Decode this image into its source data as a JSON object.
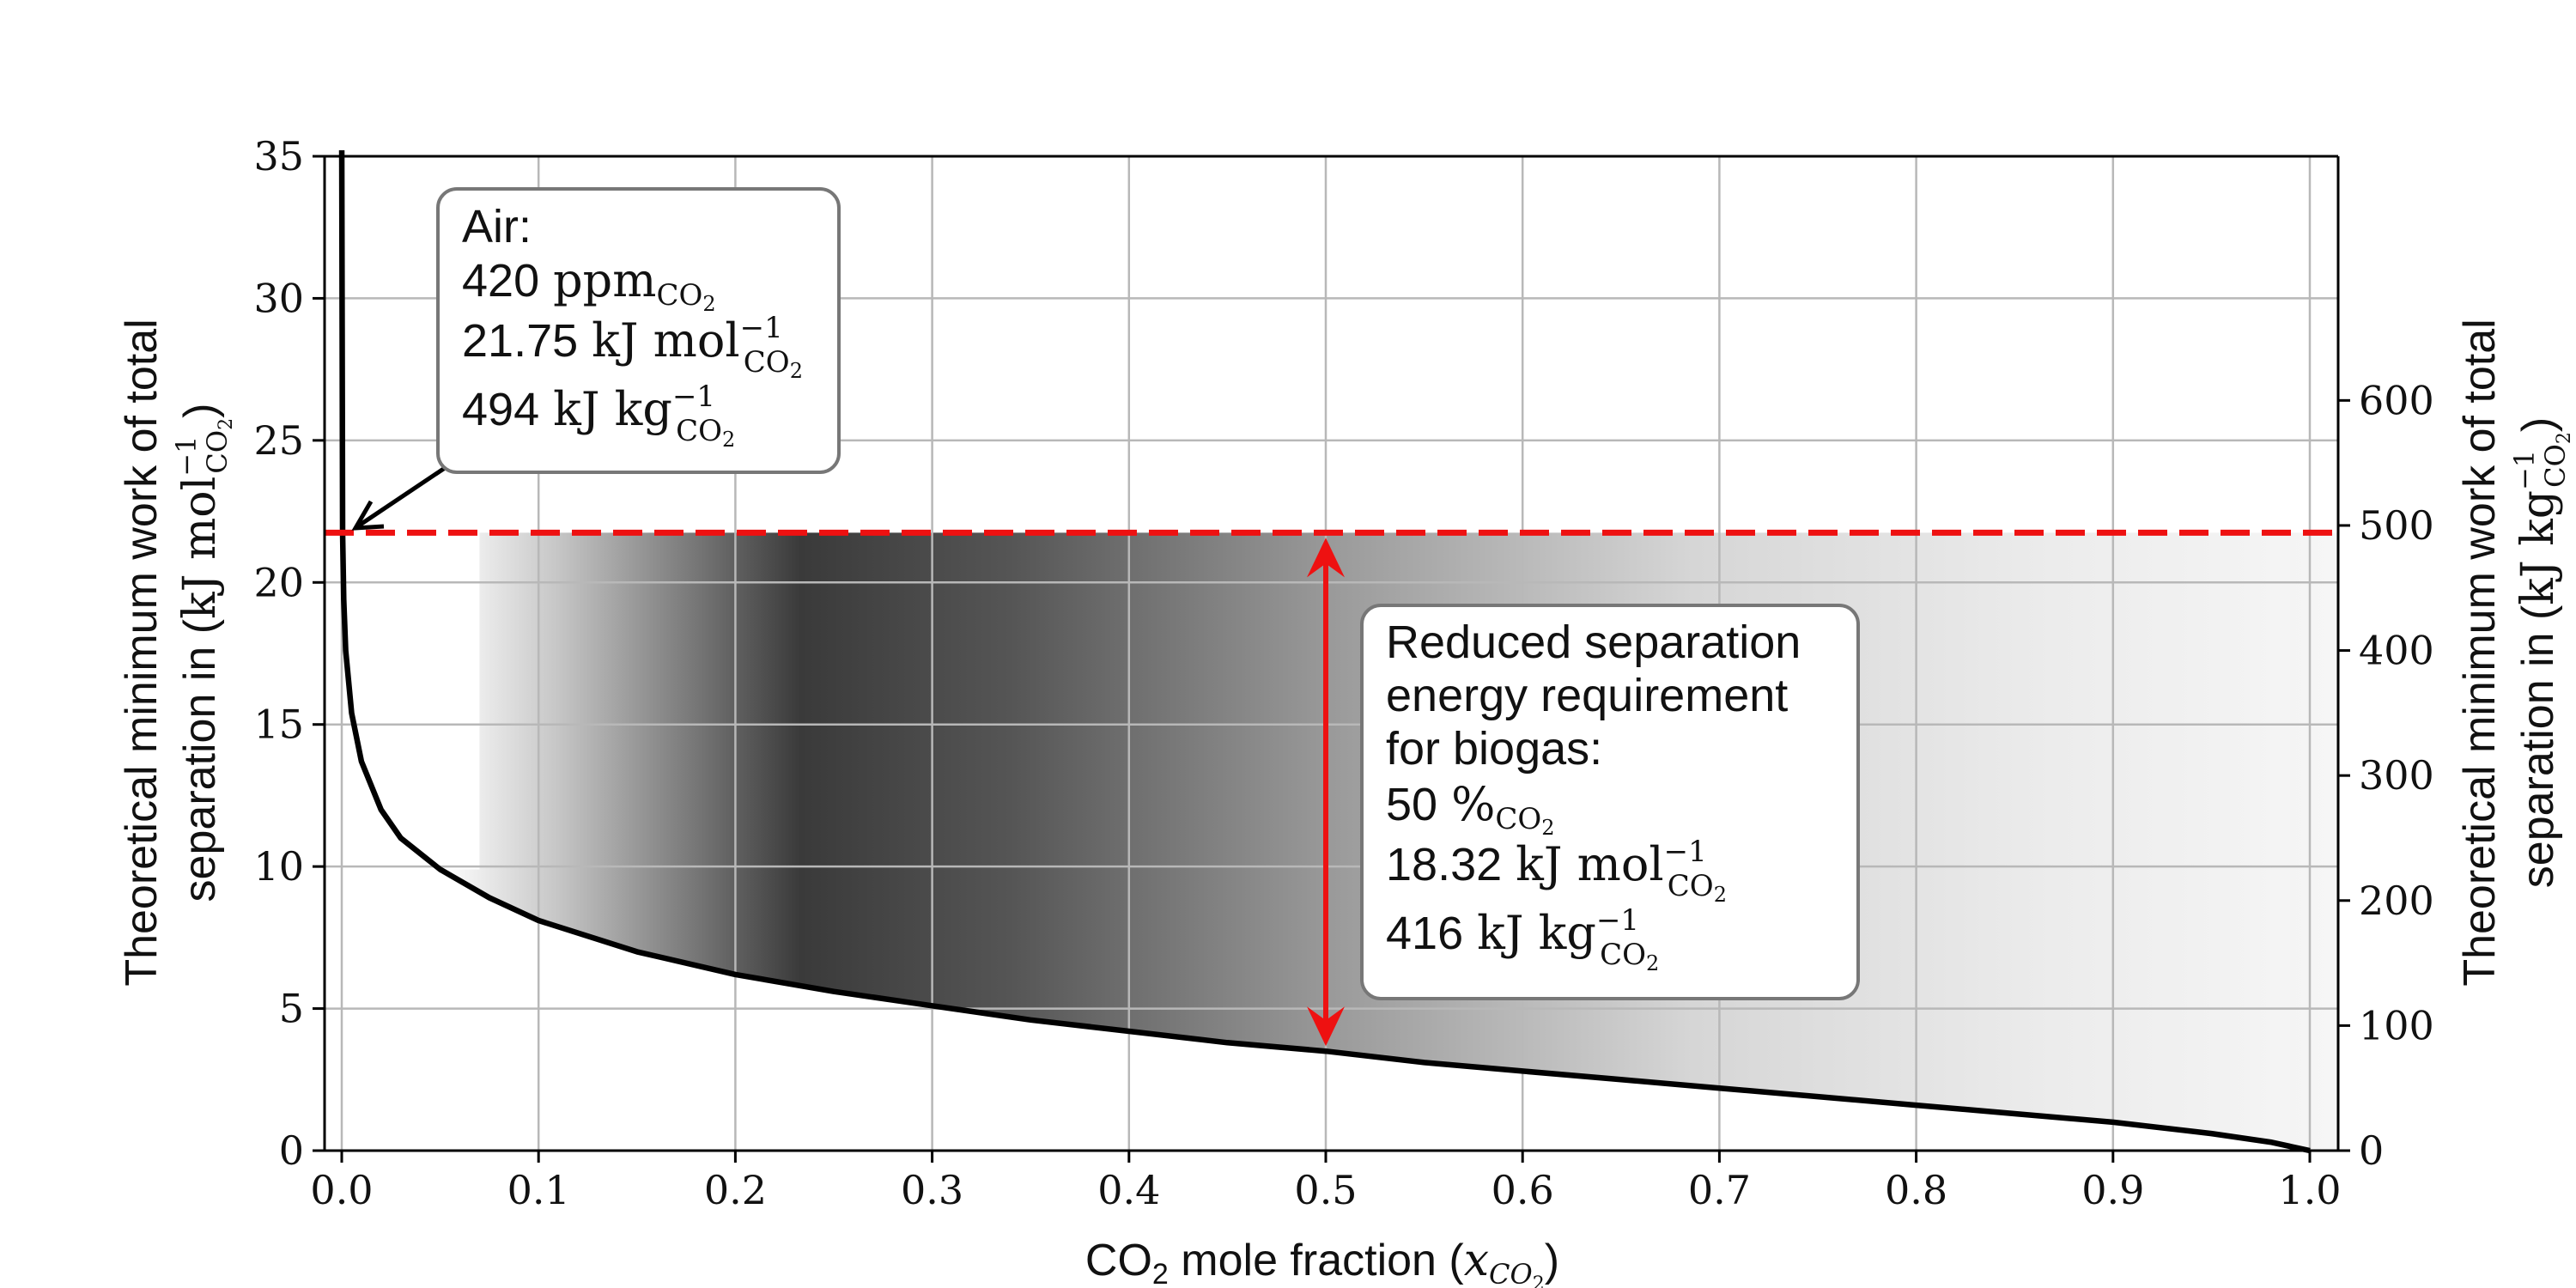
{
  "chart_data": {
    "type": "line",
    "x_axis": {
      "label_main": "CO",
      "label_sub": "2",
      "label_rest": " mole fraction (",
      "label_var": "x",
      "label_var_sub": "CO",
      "label_var_sub2": "2",
      "label_close": ")",
      "xlim": [
        0.0,
        1.0
      ],
      "ticks": [
        "0.0",
        "0.1",
        "0.2",
        "0.3",
        "0.4",
        "0.5",
        "0.6",
        "0.7",
        "0.8",
        "0.9",
        "1.0"
      ]
    },
    "y_axis_left": {
      "line1": "Theoretical minimum work of total",
      "line2_text": "separation in (",
      "line2_unit": "kJ mol",
      "line2_sup": "−1",
      "line2_sub": "CO",
      "line2_sub2": "2",
      "line2_close": ")",
      "ylim": [
        0,
        35
      ],
      "ticks": [
        "0",
        "5",
        "10",
        "15",
        "20",
        "25",
        "30",
        "35"
      ]
    },
    "y_axis_right": {
      "line1": "Theoretical minimum work of total",
      "line2_text": "separation in (",
      "line2_unit": "kJ kg",
      "line2_sup": "−1",
      "line2_sub": "CO",
      "line2_sub2": "2",
      "line2_close": ")",
      "ticks": [
        "0",
        "100",
        "200",
        "300",
        "400",
        "500",
        "600"
      ]
    },
    "grid": true,
    "series": [
      {
        "color": "#000000",
        "x": [
          0.00042,
          0.001,
          0.002,
          0.005,
          0.01,
          0.02,
          0.03,
          0.05,
          0.075,
          0.1,
          0.15,
          0.2,
          0.25,
          0.3,
          0.35,
          0.4,
          0.45,
          0.5,
          0.55,
          0.6,
          0.65,
          0.7,
          0.75,
          0.8,
          0.85,
          0.9,
          0.95,
          0.98,
          1.0
        ],
        "y": [
          21.75,
          19.4,
          17.6,
          15.4,
          13.7,
          12.0,
          11.0,
          9.9,
          8.9,
          8.1,
          7.0,
          6.2,
          5.6,
          5.1,
          4.6,
          4.2,
          3.8,
          3.5,
          3.1,
          2.8,
          2.5,
          2.2,
          1.9,
          1.6,
          1.3,
          1.0,
          0.6,
          0.3,
          0.0
        ]
      }
    ],
    "reference_line": {
      "y": 21.75,
      "color": "#ee1111",
      "style": "dashed"
    },
    "gradient_band": {
      "x_start": 0.07,
      "x_peak": 0.25,
      "x_end": 1.0,
      "y_top": 21.75
    },
    "arrow": {
      "x": 0.5,
      "y_from": 3.5,
      "y_to": 21.75,
      "color": "#ee1111"
    },
    "annotation_air": {
      "title": "Air:",
      "line1_value": "420",
      "line1_unit": "ppm",
      "line1_sub": "CO",
      "line1_sub2": "2",
      "line2_value": "21.75",
      "line2_unit": "kJ mol",
      "line2_sup": "−1",
      "line2_sub": "CO",
      "line2_sub2": "2",
      "line3_value": "494",
      "line3_unit": "kJ kg",
      "line3_sup": "−1",
      "line3_sub": "CO",
      "line3_sub2": "2",
      "point_x": 0.00042,
      "point_y": 21.75
    },
    "annotation_biogas": {
      "line1": "Reduced separation",
      "line2": "energy requirement",
      "line3": "for biogas:",
      "line4_value": "50",
      "line4_unit": "%",
      "line4_sub": "CO",
      "line4_sub2": "2",
      "line5_value": "18.32",
      "line5_unit": "kJ mol",
      "line5_sup": "−1",
      "line5_sub": "CO",
      "line5_sub2": "2",
      "line6_value": "416",
      "line6_unit": "kJ kg",
      "line6_sup": "−1",
      "line6_sub": "CO",
      "line6_sub2": "2"
    }
  }
}
